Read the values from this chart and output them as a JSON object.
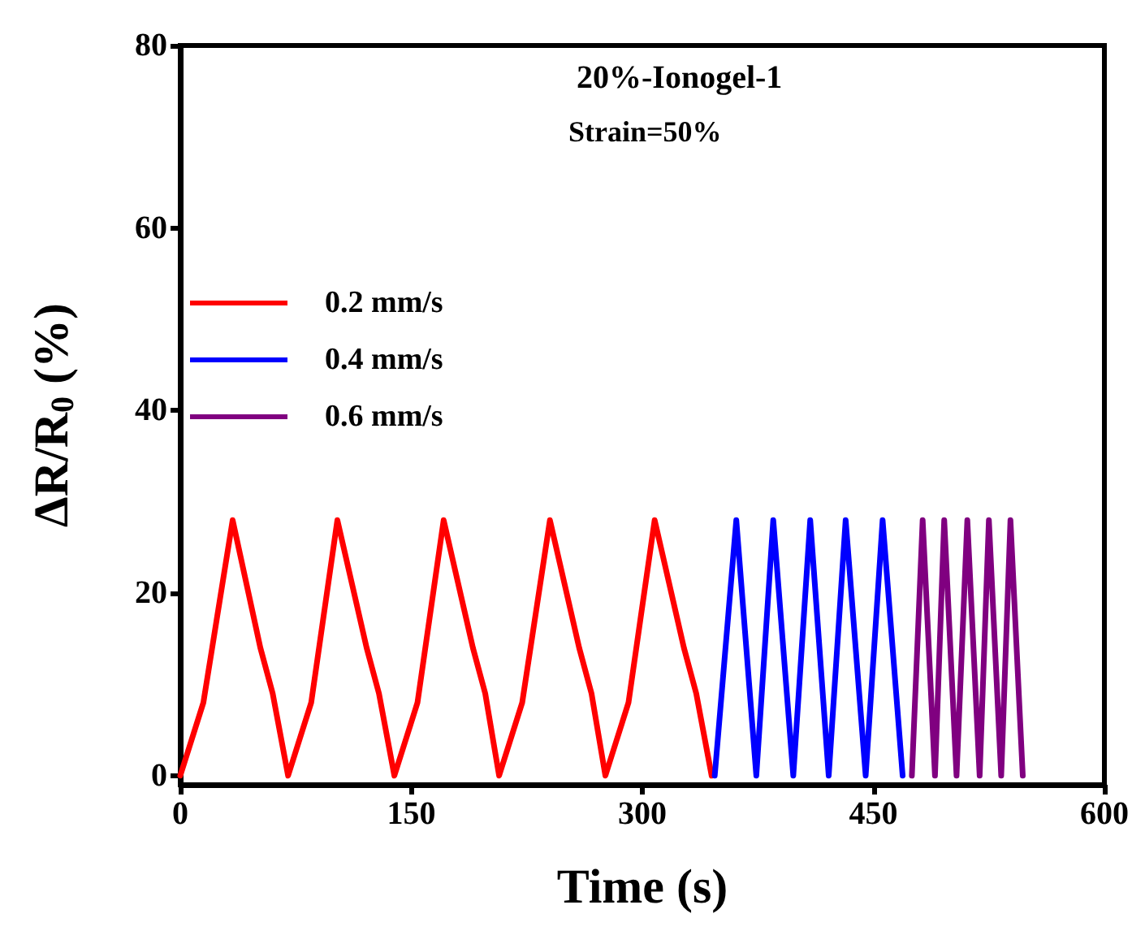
{
  "chart_data": {
    "type": "line",
    "xlabel": "Time (s)",
    "ylabel": "ΔR/R$_{0}$ (%)",
    "annotations": [
      "20%-Ionogel-1",
      "Strain=50%"
    ],
    "xlim": [
      0,
      600
    ],
    "xticks": [
      0,
      150,
      300,
      450,
      600
    ],
    "ylim": [
      -1,
      80
    ],
    "yticks": [
      0,
      20,
      40,
      60,
      80
    ],
    "grid": false,
    "legend": "top left",
    "marker": "none",
    "line_style": "solid",
    "series": [
      {
        "name": "0.2 mm/s",
        "color": "#ff0000",
        "x": [
          0,
          15,
          34,
          52,
          60,
          70,
          85,
          102,
          121,
          129,
          139,
          154,
          171,
          190,
          198,
          207,
          222,
          240,
          259,
          267,
          276,
          291,
          308,
          327,
          335,
          345
        ],
        "values": [
          0,
          8,
          28,
          14,
          9,
          0,
          8,
          28,
          14,
          9,
          0,
          8,
          28,
          14,
          9,
          0,
          8,
          28,
          14,
          9,
          0,
          8,
          28,
          14,
          9,
          0
        ]
      },
      {
        "name": "0.4 mm/s",
        "color": "#0000ff",
        "x": [
          347,
          361,
          374,
          385,
          398,
          409,
          421,
          432,
          445,
          456,
          469
        ],
        "values": [
          0,
          28,
          0,
          28,
          0,
          28,
          0,
          28,
          0,
          28,
          0
        ]
      },
      {
        "name": "0.6 mm/s",
        "color": "#800080",
        "x": [
          475,
          482,
          490,
          496,
          504,
          511,
          519,
          525,
          533,
          539,
          547
        ],
        "values": [
          0,
          28,
          0,
          28,
          0,
          28,
          0,
          28,
          0,
          28,
          0
        ]
      }
    ]
  }
}
